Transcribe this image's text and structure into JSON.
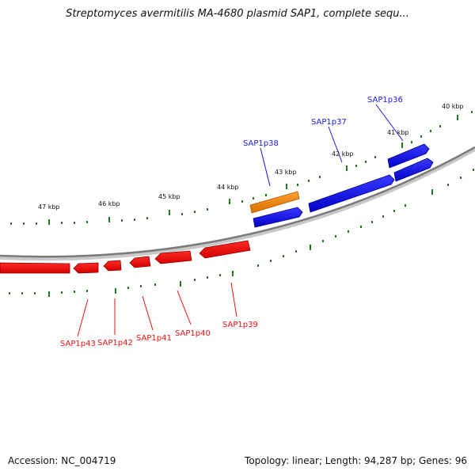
{
  "title": "Streptomyces avermitilis MA-4680 plasmid SAP1, complete sequ...",
  "footer": {
    "accession": "Accession: NC_004719",
    "summary": "Topology: linear; Length: 94,287 bp; Genes: 96"
  },
  "colors": {
    "forward_gene": "#1a1aee",
    "reverse_gene": "#ee1111",
    "selected_gene": "#f08c1a",
    "tick": "#1e7a1e",
    "backbone": "#8a8a8a"
  },
  "scale_labels": [
    "47 kbp",
    "46 kbp",
    "45 kbp",
    "44 kbp",
    "43 kbp",
    "42 kbp",
    "41 kbp",
    "40 kbp"
  ],
  "genes_forward": [
    "SAP1p36",
    "SAP1p37",
    "SAP1p38"
  ],
  "genes_reverse": [
    "SAP1p39",
    "SAP1p40",
    "SAP1p41",
    "SAP1p42",
    "SAP1p43"
  ]
}
